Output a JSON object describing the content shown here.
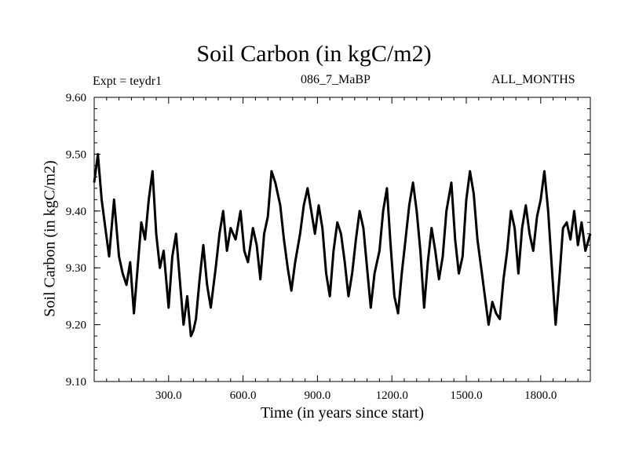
{
  "chart_data": {
    "type": "line",
    "title": "Soil Carbon (in kgC/m2)",
    "subtitle_left": "Expt = teydr1",
    "subtitle_center": "086_7_MaBP",
    "subtitle_right": "ALL_MONTHS",
    "xlabel": "Time (in years since start)",
    "ylabel": "Soil Carbon (in kgC/m2)",
    "xlim": [
      0,
      2000
    ],
    "ylim": [
      9.1,
      9.6
    ],
    "xticks": [
      300,
      600,
      900,
      1200,
      1500,
      1800
    ],
    "xtick_labels": [
      "300.0",
      "600.0",
      "900.0",
      "1200.0",
      "1500.0",
      "1800.0"
    ],
    "yticks": [
      9.1,
      9.2,
      9.3,
      9.4,
      9.5,
      9.6
    ],
    "ytick_labels": [
      "9.10",
      "9.20",
      "9.30",
      "9.40",
      "9.50",
      "9.60"
    ],
    "line_color": "#000000",
    "series": [
      {
        "x": [
          0,
          15,
          30,
          45,
          60,
          80,
          100,
          115,
          130,
          145,
          160,
          175,
          190,
          205,
          220,
          235,
          250,
          265,
          280,
          300,
          315,
          330,
          345,
          360,
          375,
          390,
          400,
          410,
          425,
          440,
          455,
          470,
          490,
          505,
          520,
          535,
          550,
          570,
          590,
          605,
          620,
          640,
          655,
          670,
          685,
          700,
          715,
          730,
          750,
          765,
          780,
          795,
          810,
          830,
          845,
          860,
          875,
          890,
          905,
          920,
          935,
          950,
          965,
          980,
          995,
          1010,
          1025,
          1040,
          1055,
          1070,
          1085,
          1100,
          1115,
          1130,
          1150,
          1165,
          1180,
          1195,
          1210,
          1225,
          1240,
          1255,
          1270,
          1285,
          1300,
          1315,
          1330,
          1345,
          1360,
          1375,
          1390,
          1405,
          1420,
          1440,
          1455,
          1470,
          1485,
          1500,
          1515,
          1530,
          1545,
          1560,
          1575,
          1590,
          1605,
          1620,
          1635,
          1650,
          1665,
          1680,
          1695,
          1710,
          1725,
          1740,
          1755,
          1770,
          1785,
          1800,
          1815,
          1830,
          1845,
          1860,
          1875,
          1890,
          1905,
          1920,
          1935,
          1950,
          1965,
          1980,
          2000
        ],
        "y": [
          9.45,
          9.5,
          9.42,
          9.37,
          9.32,
          9.42,
          9.32,
          9.29,
          9.27,
          9.31,
          9.22,
          9.3,
          9.38,
          9.35,
          9.42,
          9.47,
          9.36,
          9.3,
          9.33,
          9.23,
          9.32,
          9.36,
          9.28,
          9.2,
          9.25,
          9.18,
          9.19,
          9.21,
          9.28,
          9.34,
          9.27,
          9.23,
          9.3,
          9.36,
          9.4,
          9.33,
          9.37,
          9.35,
          9.4,
          9.33,
          9.31,
          9.37,
          9.34,
          9.28,
          9.36,
          9.39,
          9.47,
          9.45,
          9.41,
          9.35,
          9.3,
          9.26,
          9.31,
          9.36,
          9.41,
          9.44,
          9.4,
          9.36,
          9.41,
          9.37,
          9.29,
          9.25,
          9.33,
          9.38,
          9.36,
          9.31,
          9.25,
          9.29,
          9.35,
          9.4,
          9.37,
          9.3,
          9.23,
          9.29,
          9.33,
          9.4,
          9.44,
          9.34,
          9.25,
          9.22,
          9.29,
          9.35,
          9.41,
          9.45,
          9.4,
          9.33,
          9.23,
          9.31,
          9.37,
          9.33,
          9.28,
          9.32,
          9.4,
          9.45,
          9.35,
          9.29,
          9.32,
          9.42,
          9.47,
          9.43,
          9.35,
          9.3,
          9.25,
          9.2,
          9.24,
          9.22,
          9.21,
          9.28,
          9.33,
          9.4,
          9.37,
          9.29,
          9.37,
          9.41,
          9.36,
          9.33,
          9.39,
          9.42,
          9.47,
          9.4,
          9.3,
          9.2,
          9.28,
          9.37,
          9.38,
          9.35,
          9.4,
          9.34,
          9.38,
          9.33,
          9.36
        ]
      }
    ]
  }
}
